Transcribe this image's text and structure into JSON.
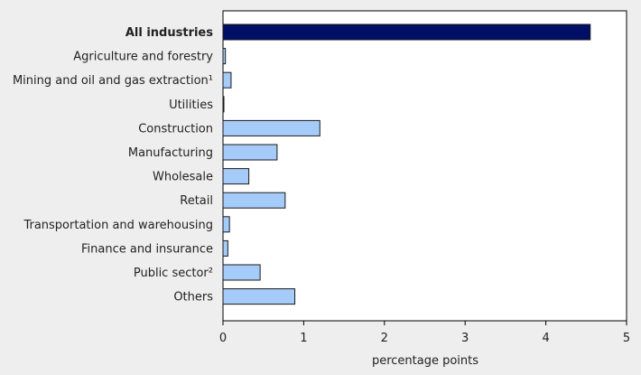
{
  "chart_data": {
    "type": "bar",
    "orientation": "horizontal",
    "title": "",
    "xlabel": "percentage points",
    "ylabel": "",
    "xlim": [
      0,
      5
    ],
    "x_ticks": [
      "0",
      "1",
      "2",
      "3",
      "4",
      "5"
    ],
    "grid": false,
    "legend": "none",
    "categories": [
      "All industries",
      "Agriculture and forestry",
      "Mining and oil and gas extraction¹",
      "Utilities",
      "Construction",
      "Manufacturing",
      "Wholesale",
      "Retail",
      "Transportation and warehousing",
      "Finance and insurance",
      "Public sector²",
      "Others"
    ],
    "values": [
      4.55,
      0.03,
      0.1,
      0.01,
      1.2,
      0.67,
      0.32,
      0.77,
      0.08,
      0.06,
      0.46,
      0.89
    ],
    "highlight_category": "All industries",
    "colors": {
      "highlight": "#000f66",
      "bar": "#a5ccf9",
      "bar_stroke": "#1a1a1a",
      "axis": "#000000",
      "background": "#eeeeee",
      "plot_background": "#ffffff"
    }
  }
}
